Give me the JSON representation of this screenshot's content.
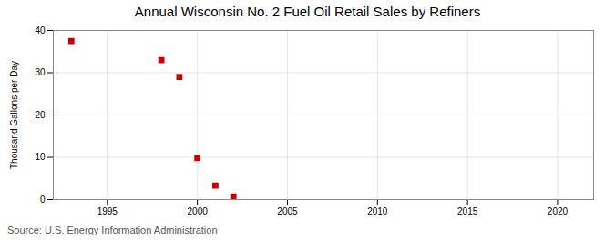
{
  "chart_data": {
    "type": "scatter",
    "title": "Annual Wisconsin No. 2 Fuel Oil Retail Sales by Refiners",
    "ylabel": "Thousand Gallons per Day",
    "annotations": [
      "Source: U.S. Energy Information Administration"
    ],
    "x": [
      1993,
      1998,
      1999,
      2000,
      2001,
      2002
    ],
    "values": [
      37.5,
      33.0,
      29.0,
      9.8,
      3.3,
      0.7
    ],
    "color": "#cc0000",
    "marker": "square",
    "xlim": [
      1992,
      2022
    ],
    "xticks": [
      1995,
      2000,
      2005,
      2010,
      2015,
      2020
    ],
    "ylim": [
      0,
      40
    ],
    "yticks": [
      0,
      10,
      20,
      30,
      40
    ],
    "grid": true
  }
}
